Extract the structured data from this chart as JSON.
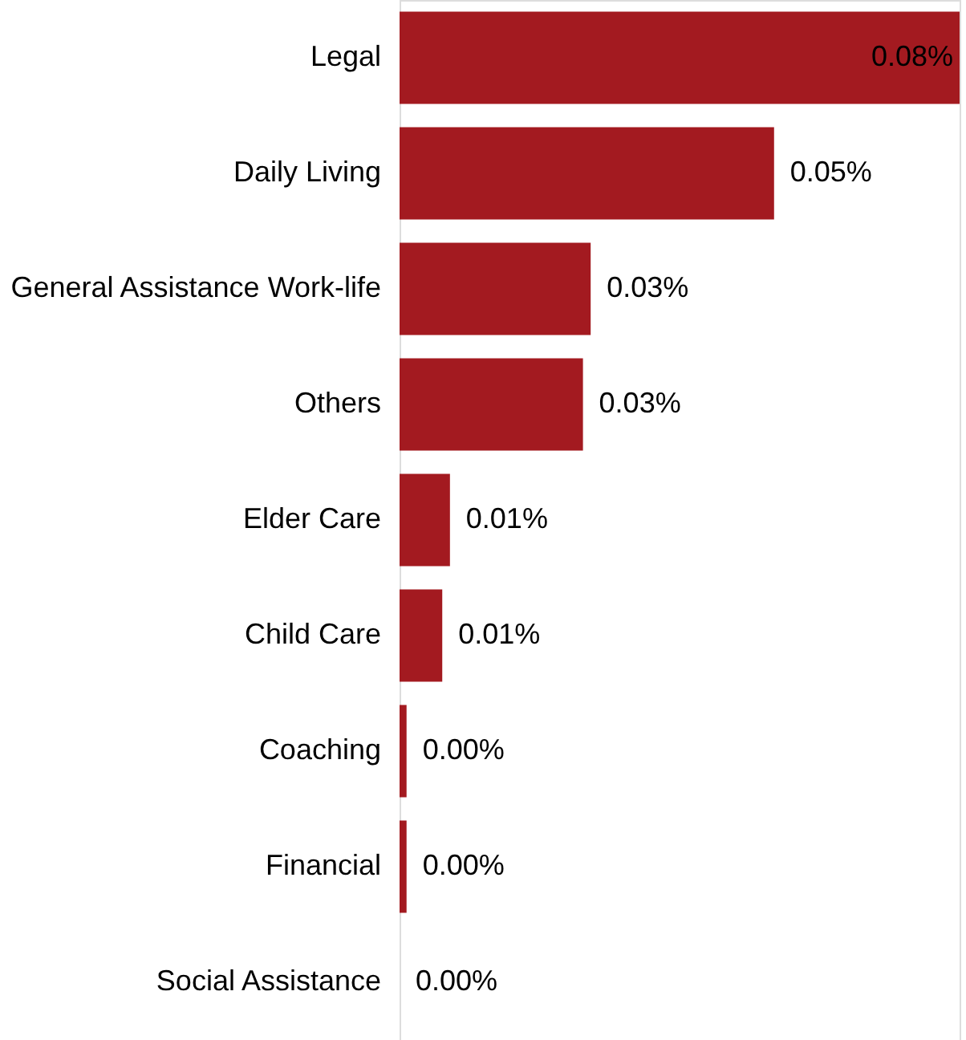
{
  "chart_data": {
    "type": "bar",
    "orientation": "horizontal",
    "categories": [
      "Legal",
      "Daily Living",
      "General Assistance Work-life",
      "Others",
      "Elder Care",
      "Child Care",
      "Coaching",
      "Financial",
      "Social Assistance"
    ],
    "values": [
      0.08,
      0.0535,
      0.0273,
      0.0262,
      0.0072,
      0.0061,
      0.001,
      0.001,
      0
    ],
    "value_labels": [
      "0.08%",
      "0.05%",
      "0.03%",
      "0.03%",
      "0.01%",
      "0.01%",
      "0.00%",
      "0.00%",
      "0.00%"
    ],
    "color": "#a31a20"
  }
}
